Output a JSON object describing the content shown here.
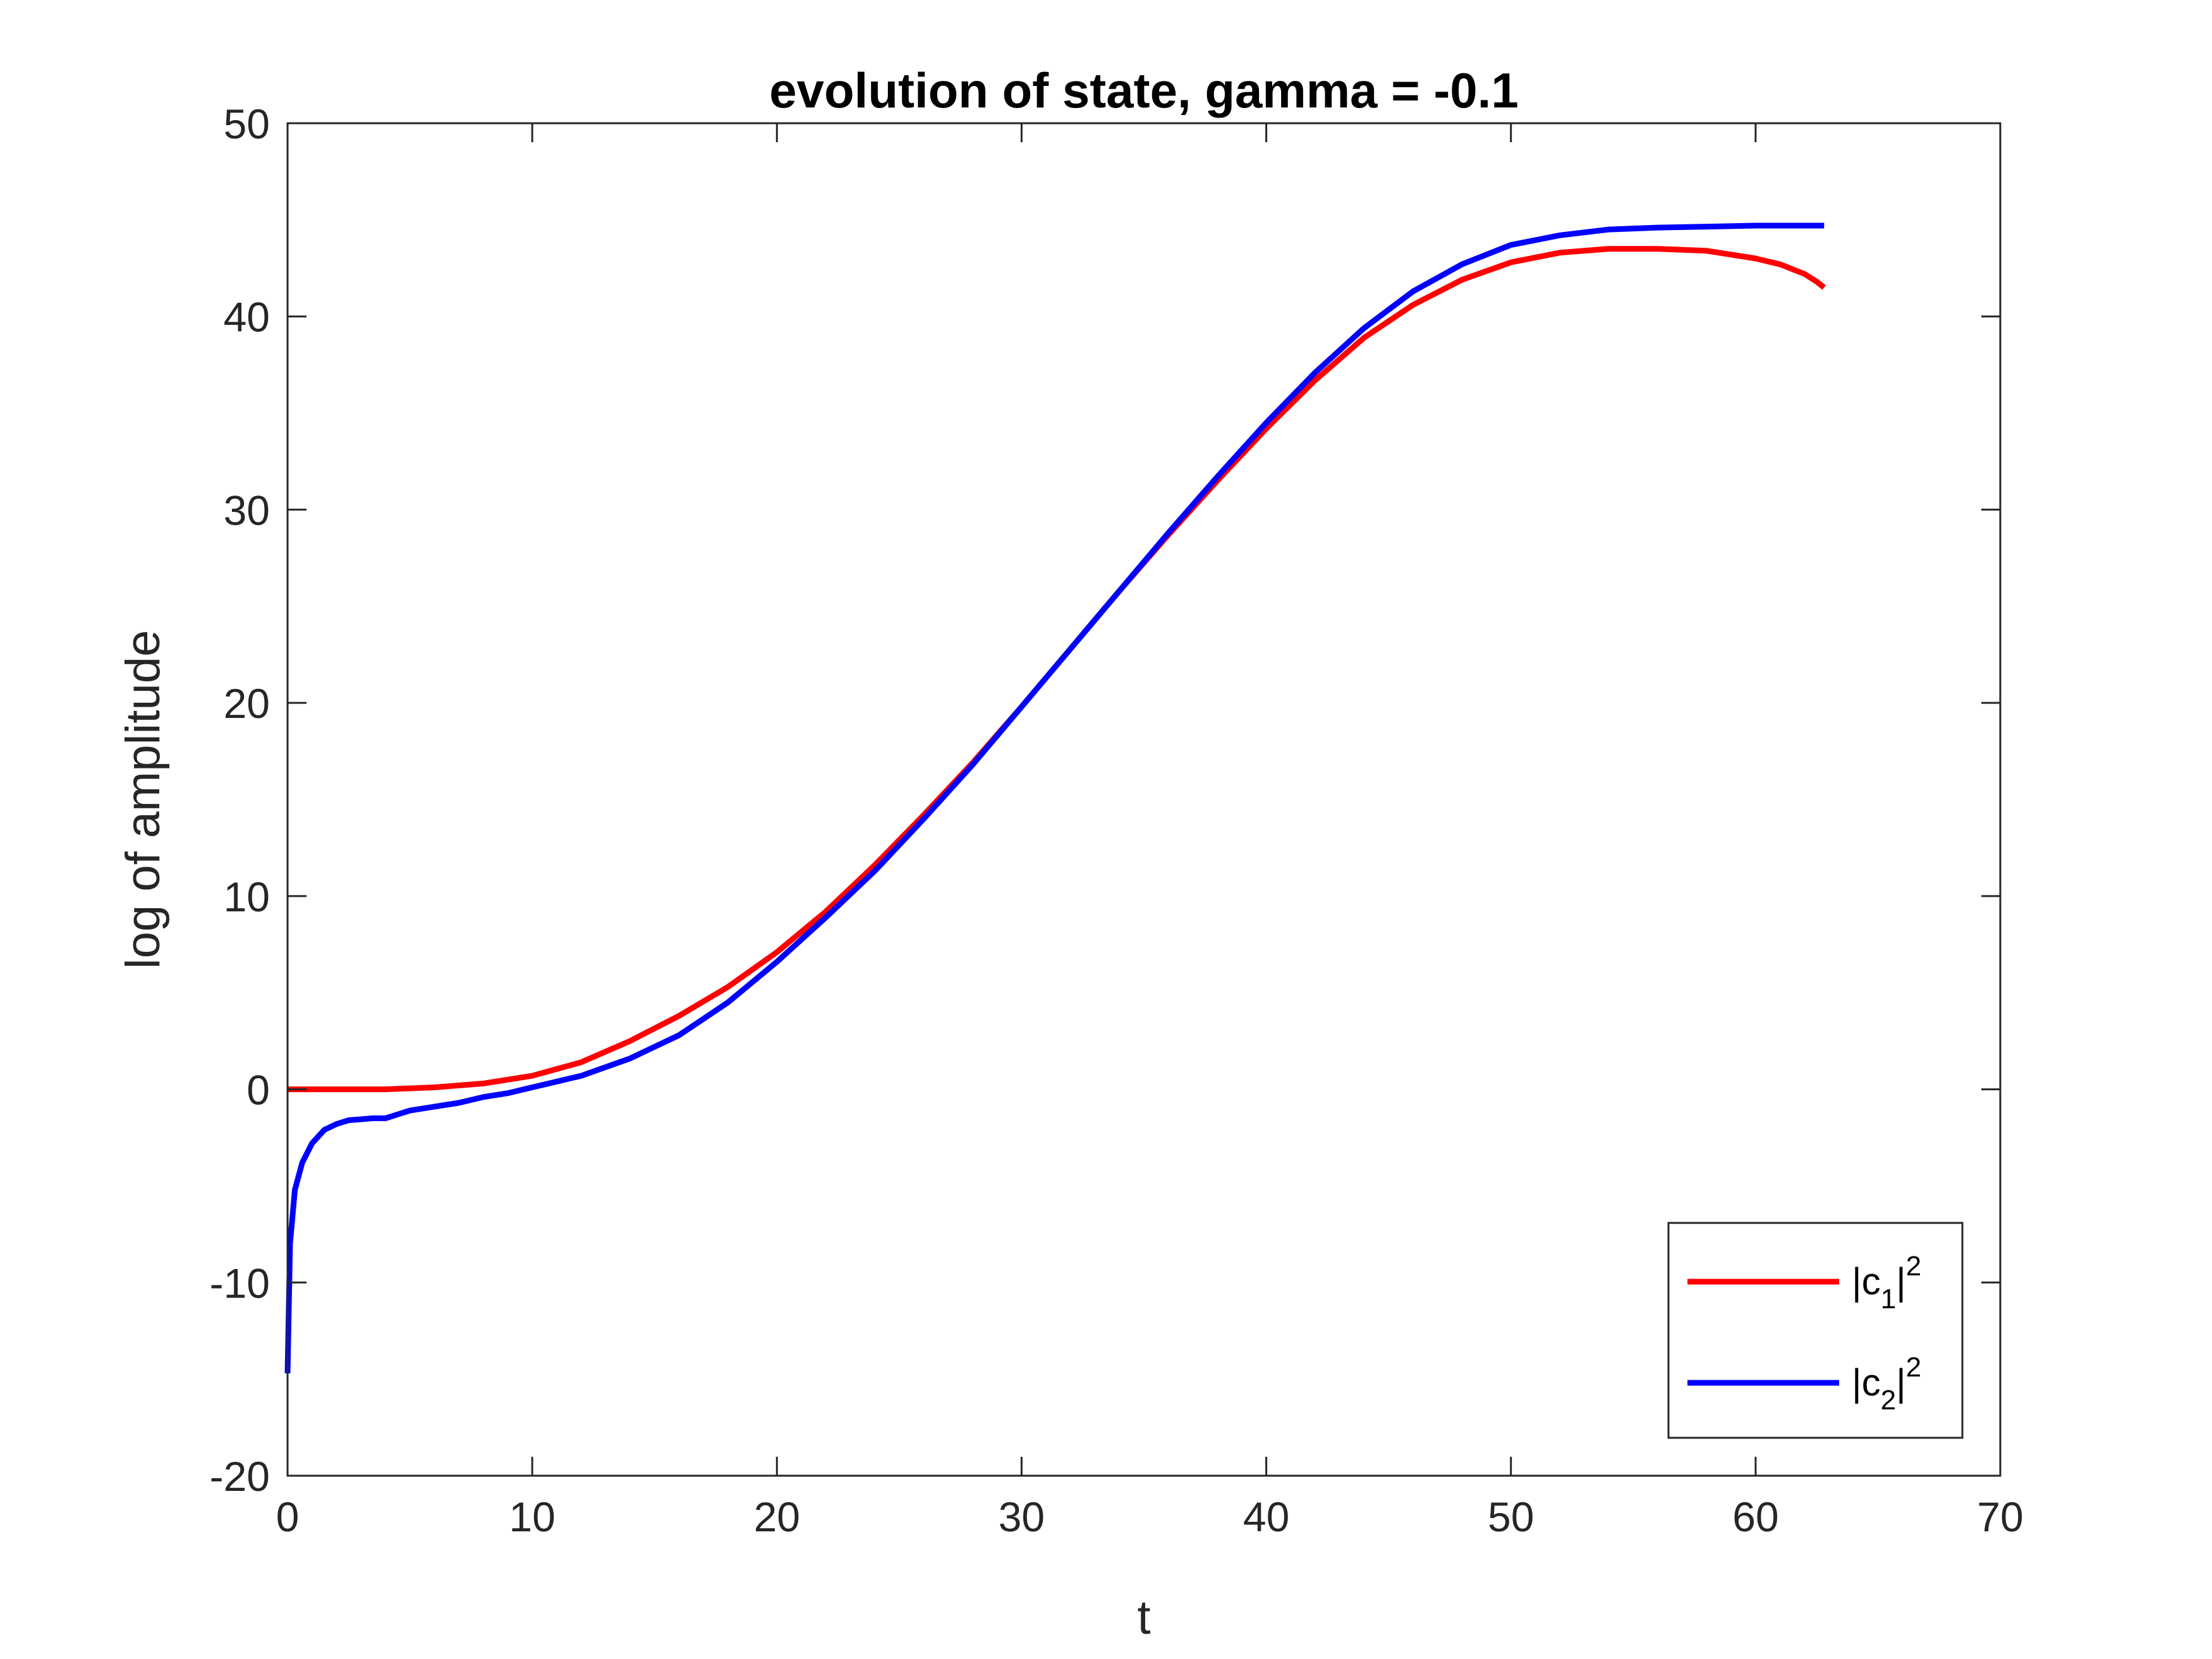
{
  "chart_data": {
    "type": "line",
    "title": "evolution of state, gamma = -0.1",
    "xlabel": "t",
    "ylabel": "log of amplitude",
    "xlim": [
      0,
      70
    ],
    "ylim": [
      -20,
      50
    ],
    "xticks": [
      0,
      10,
      20,
      30,
      40,
      50,
      60,
      70
    ],
    "yticks": [
      -20,
      -10,
      0,
      10,
      20,
      30,
      40,
      50
    ],
    "xtick_labels": [
      "0",
      "10",
      "20",
      "30",
      "40",
      "50",
      "60",
      "70"
    ],
    "ytick_labels": [
      "-20",
      "-10",
      "0",
      "10",
      "20",
      "30",
      "40",
      "50"
    ],
    "grid": false,
    "legend_position": "bottom-right",
    "series": [
      {
        "name": "|c1|^2",
        "label_base": "|c",
        "label_sub": "1",
        "label_tail": "|",
        "label_sup": "2",
        "color": "#ff0000",
        "x": [
          0,
          2,
          4,
          6,
          8,
          10,
          12,
          14,
          16,
          18,
          20,
          22,
          24,
          26,
          28,
          30,
          32,
          34,
          36,
          38,
          40,
          42,
          44,
          46,
          48,
          50,
          52,
          54,
          56,
          58,
          60,
          61,
          62,
          62.5,
          62.8
        ],
        "y": [
          0,
          0,
          0,
          0.1,
          0.3,
          0.7,
          1.4,
          2.5,
          3.8,
          5.3,
          7.1,
          9.2,
          11.6,
          14.2,
          16.9,
          19.8,
          22.8,
          25.8,
          28.7,
          31.5,
          34.2,
          36.7,
          38.9,
          40.6,
          41.9,
          42.8,
          43.3,
          43.5,
          43.5,
          43.4,
          43.0,
          42.7,
          42.2,
          41.8,
          41.5
        ]
      },
      {
        "name": "|c2|^2",
        "label_base": "|c",
        "label_sub": "2",
        "label_tail": "|",
        "label_sup": "2",
        "color": "#0000ff",
        "x": [
          0,
          0.1,
          0.3,
          0.6,
          1,
          1.5,
          2,
          2.5,
          3,
          3.5,
          4,
          5,
          6,
          7,
          8,
          9,
          10,
          12,
          14,
          16,
          18,
          20,
          22,
          24,
          26,
          28,
          30,
          32,
          34,
          36,
          38,
          40,
          42,
          44,
          46,
          48,
          50,
          52,
          54,
          56,
          58,
          60,
          62,
          62.8
        ],
        "y": [
          -14.7,
          -8,
          -5.2,
          -3.8,
          -2.8,
          -2.1,
          -1.8,
          -1.6,
          -1.55,
          -1.5,
          -1.5,
          -1.1,
          -0.9,
          -0.7,
          -0.4,
          -0.2,
          0.1,
          0.7,
          1.6,
          2.8,
          4.5,
          6.6,
          8.9,
          11.3,
          14.0,
          16.8,
          19.8,
          22.8,
          25.8,
          28.8,
          31.7,
          34.5,
          37.1,
          39.4,
          41.3,
          42.7,
          43.7,
          44.2,
          44.5,
          44.6,
          44.65,
          44.7,
          44.7,
          44.7
        ]
      }
    ]
  }
}
